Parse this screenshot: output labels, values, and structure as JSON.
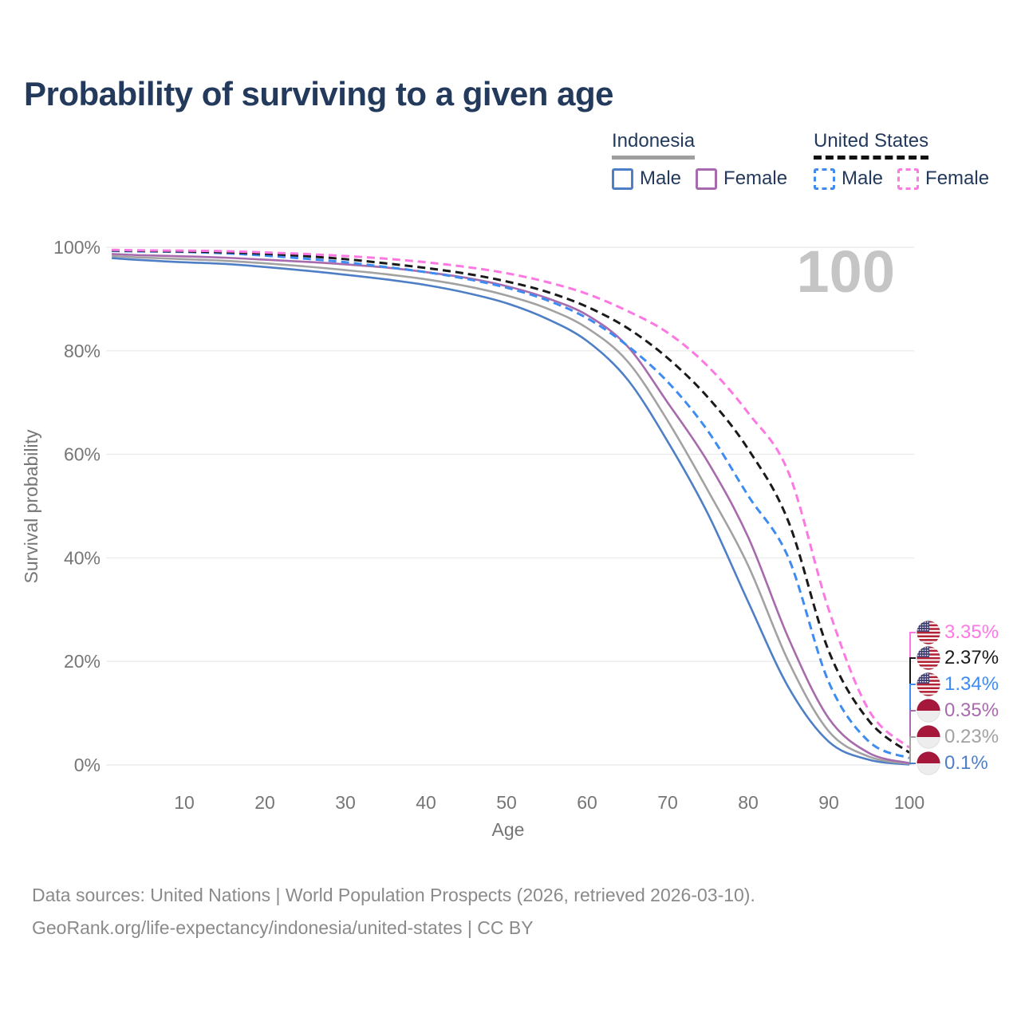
{
  "chart_data": {
    "type": "line",
    "title": "Probability of surviving to a given age",
    "xlabel": "Age",
    "ylabel": "Survival probability",
    "xlim": [
      1,
      100
    ],
    "ylim": [
      0,
      100
    ],
    "x_ticks": [
      10,
      20,
      30,
      40,
      50,
      60,
      70,
      80,
      90,
      100
    ],
    "y_ticks": [
      0,
      20,
      40,
      60,
      80,
      100
    ],
    "y_tick_suffix": "%",
    "grid": "horizontal-only",
    "legend_position": "top-right",
    "hover_age_indicator": "100",
    "x": [
      1,
      5,
      10,
      15,
      20,
      25,
      30,
      35,
      40,
      45,
      50,
      55,
      60,
      65,
      70,
      75,
      80,
      85,
      90,
      95,
      100
    ],
    "series": [
      {
        "name": "United States Female",
        "country": "United States",
        "flag": "us",
        "sex": "Female",
        "color": "#fd78e2",
        "dashed": true,
        "end_label": "3.35%",
        "values": [
          99.5,
          99.4,
          99.35,
          99.25,
          99.0,
          98.7,
          98.3,
          97.8,
          97.1,
          96.2,
          95.0,
          93.3,
          91.0,
          87.7,
          83.5,
          77.0,
          68.0,
          56.5,
          30.0,
          10.5,
          3.35
        ]
      },
      {
        "name": "United States",
        "country": "United States",
        "flag": "us",
        "sex": "All",
        "color": "#1a1a1a",
        "dashed": true,
        "end_label": "2.37%",
        "values": [
          99.4,
          99.3,
          99.2,
          99.05,
          98.75,
          98.3,
          97.7,
          96.9,
          96.0,
          94.9,
          93.4,
          91.4,
          88.5,
          84.4,
          78.6,
          71.0,
          61.0,
          47.0,
          22.0,
          8.5,
          2.37
        ]
      },
      {
        "name": "United States Male",
        "country": "United States",
        "flag": "us",
        "sex": "Male",
        "color": "#3e8bf2",
        "dashed": true,
        "end_label": "1.34%",
        "values": [
          99.3,
          99.2,
          99.1,
          98.85,
          98.4,
          97.8,
          97.1,
          96.2,
          95.2,
          93.9,
          92.2,
          89.8,
          86.3,
          81.0,
          74.0,
          64.5,
          52.0,
          40.0,
          16.0,
          4.5,
          1.34
        ]
      },
      {
        "name": "Indonesia Female",
        "country": "Indonesia",
        "flag": "id",
        "sex": "Female",
        "color": "#a76bad",
        "dashed": false,
        "end_label": "0.35%",
        "values": [
          98.7,
          98.45,
          98.25,
          98.0,
          97.6,
          97.2,
          96.7,
          96.1,
          95.2,
          94.1,
          92.5,
          90.2,
          86.9,
          80.9,
          70.0,
          58.5,
          44.0,
          24.5,
          9.0,
          2.3,
          0.35
        ]
      },
      {
        "name": "Indonesia",
        "country": "Indonesia",
        "flag": "id",
        "sex": "All",
        "color": "#a2a2a2",
        "dashed": false,
        "end_label": "0.23%",
        "values": [
          98.3,
          98.0,
          97.7,
          97.4,
          96.9,
          96.3,
          95.6,
          94.8,
          93.8,
          92.5,
          90.7,
          88.2,
          84.4,
          78.0,
          66.5,
          53.0,
          38.5,
          20.0,
          6.5,
          1.6,
          0.23
        ]
      },
      {
        "name": "Indonesia Male",
        "country": "Indonesia",
        "flag": "id",
        "sex": "Male",
        "color": "#4e7fc6",
        "dashed": false,
        "end_label": "0.1%",
        "values": [
          97.9,
          97.5,
          97.1,
          96.8,
          96.2,
          95.5,
          94.7,
          93.8,
          92.7,
          91.2,
          89.2,
          86.2,
          81.9,
          74.5,
          62.5,
          48.5,
          31.5,
          15.0,
          4.5,
          1.0,
          0.1
        ]
      }
    ]
  },
  "legend": {
    "groups": [
      {
        "name": "Indonesia",
        "line_style": "solid",
        "underline_color": "#9e9e9e",
        "items": [
          {
            "label": "Male",
            "color": "#4e7fc6",
            "dashed": false
          },
          {
            "label": "Female",
            "color": "#a76bad",
            "dashed": false
          }
        ]
      },
      {
        "name": "United States",
        "line_style": "dashed",
        "underline_color": "#111111",
        "items": [
          {
            "label": "Male",
            "color": "#3e8bf2",
            "dashed": true
          },
          {
            "label": "Female",
            "color": "#fd7ae0",
            "dashed": true
          }
        ]
      }
    ]
  },
  "colors": {
    "title_navy": "#233a5c",
    "tick_gray": "#767676",
    "grid_gray": "#ebebeb",
    "watermark_gray": "#c5c5c5",
    "footer_gray": "#8a8a8a",
    "us_flag_canton": "#3c3b6e",
    "us_flag_red": "#b22234",
    "id_flag_red": "#a5173b",
    "id_flag_white": "#ededed"
  },
  "footer": {
    "line1": "Data sources: United Nations | World Population Prospects (2026, retrieved 2026-03-10).",
    "line2": "GeoRank.org/life-expectancy/indonesia/united-states | CC BY"
  }
}
